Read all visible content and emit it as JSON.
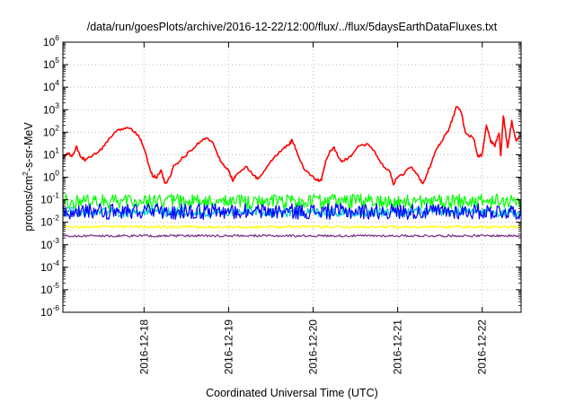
{
  "chart_data": {
    "type": "line",
    "title": "/data/run/goesPlots/archive/2016-12-22/12:00/flux/../flux/5daysEarthDataFluxes.txt",
    "xlabel": "Coordinated Universal Time (UTC)",
    "ylabel": {
      "prefix": "protons/cm",
      "sup": "2",
      "suffix": "-s-sr-MeV"
    },
    "yscale": "log",
    "ylim": [
      1e-06,
      1000000.0
    ],
    "xlim": [
      -0.96,
      4.46
    ],
    "y_ticks": [
      {
        "base": "10",
        "exp": "-6",
        "value": -6
      },
      {
        "base": "10",
        "exp": "-5",
        "value": -5
      },
      {
        "base": "10",
        "exp": "-4",
        "value": -4
      },
      {
        "base": "10",
        "exp": "-3",
        "value": -3
      },
      {
        "base": "10",
        "exp": "-2",
        "value": -2
      },
      {
        "base": "10",
        "exp": "-1",
        "value": -1
      },
      {
        "base": "10",
        "exp": "0",
        "value": 0
      },
      {
        "base": "10",
        "exp": "1",
        "value": 1
      },
      {
        "base": "10",
        "exp": "2",
        "value": 2
      },
      {
        "base": "10",
        "exp": "3",
        "value": 3
      },
      {
        "base": "10",
        "exp": "4",
        "value": 4
      },
      {
        "base": "10",
        "exp": "5",
        "value": 5
      },
      {
        "base": "10",
        "exp": "6",
        "value": 6
      }
    ],
    "x_ticks": [
      {
        "label": "2016-12-18",
        "value": 0
      },
      {
        "label": "2016-12-19",
        "value": 1
      },
      {
        "label": "2016-12-20",
        "value": 2
      },
      {
        "label": "2016-12-21",
        "value": 3
      },
      {
        "label": "2016-12-22",
        "value": 4
      }
    ],
    "grid": true,
    "legend": "none",
    "series": [
      {
        "color": "#ff0000",
        "style": "smooth",
        "points": [
          [
            -0.96,
            7
          ],
          [
            -0.9,
            12
          ],
          [
            -0.85,
            8
          ],
          [
            -0.8,
            22
          ],
          [
            -0.75,
            8
          ],
          [
            -0.7,
            6
          ],
          [
            -0.6,
            9
          ],
          [
            -0.5,
            18
          ],
          [
            -0.4,
            60
          ],
          [
            -0.3,
            120
          ],
          [
            -0.2,
            170
          ],
          [
            -0.1,
            100
          ],
          [
            -0.05,
            60
          ],
          [
            0,
            20
          ],
          [
            0.05,
            4
          ],
          [
            0.1,
            1.2
          ],
          [
            0.15,
            1
          ],
          [
            0.2,
            2
          ],
          [
            0.25,
            0.5
          ],
          [
            0.3,
            0.9
          ],
          [
            0.35,
            3
          ],
          [
            0.45,
            7
          ],
          [
            0.55,
            14
          ],
          [
            0.65,
            35
          ],
          [
            0.75,
            60
          ],
          [
            0.82,
            30
          ],
          [
            0.88,
            8
          ],
          [
            0.95,
            3
          ],
          [
            1.0,
            2
          ],
          [
            1.05,
            0.7
          ],
          [
            1.1,
            1.5
          ],
          [
            1.2,
            3
          ],
          [
            1.3,
            1.2
          ],
          [
            1.35,
            0.8
          ],
          [
            1.45,
            3
          ],
          [
            1.55,
            8
          ],
          [
            1.65,
            20
          ],
          [
            1.72,
            30
          ],
          [
            1.75,
            45
          ],
          [
            1.8,
            15
          ],
          [
            1.9,
            2
          ],
          [
            2.0,
            1
          ],
          [
            2.05,
            0.7
          ],
          [
            2.1,
            0.8
          ],
          [
            2.15,
            5
          ],
          [
            2.2,
            14
          ],
          [
            2.25,
            20
          ],
          [
            2.3,
            8
          ],
          [
            2.35,
            5
          ],
          [
            2.45,
            9
          ],
          [
            2.55,
            25
          ],
          [
            2.65,
            30
          ],
          [
            2.72,
            15
          ],
          [
            2.8,
            4
          ],
          [
            2.9,
            2
          ],
          [
            2.95,
            0.5
          ],
          [
            3.0,
            1
          ],
          [
            3.08,
            1.5
          ],
          [
            3.15,
            3
          ],
          [
            3.25,
            1
          ],
          [
            3.3,
            0.5
          ],
          [
            3.38,
            3
          ],
          [
            3.45,
            15
          ],
          [
            3.52,
            40
          ],
          [
            3.6,
            120
          ],
          [
            3.65,
            400
          ],
          [
            3.7,
            1500
          ],
          [
            3.75,
            800
          ],
          [
            3.8,
            100
          ],
          [
            3.9,
            50
          ],
          [
            3.95,
            8
          ],
          [
            4.0,
            10
          ],
          [
            4.05,
            200
          ],
          [
            4.1,
            40
          ],
          [
            4.15,
            25
          ],
          [
            4.2,
            100
          ],
          [
            4.22,
            8
          ],
          [
            4.25,
            600
          ],
          [
            4.3,
            20
          ],
          [
            4.35,
            300
          ],
          [
            4.4,
            40
          ],
          [
            4.46,
            80
          ]
        ]
      },
      {
        "color": "#00ff00",
        "style": "noise",
        "base": 0.085,
        "amp": 0.32
      },
      {
        "color": "#00c8c8",
        "style": "noise",
        "base": 0.028,
        "amp": 0.22
      },
      {
        "color": "#0000ff",
        "style": "noise",
        "base": 0.03,
        "amp": 0.35
      },
      {
        "color": "#ffff00",
        "style": "noise",
        "base": 0.0062,
        "amp": 0.06
      },
      {
        "color": "#7b2c8b",
        "style": "noise",
        "base": 0.0025,
        "amp": 0.05
      }
    ]
  }
}
